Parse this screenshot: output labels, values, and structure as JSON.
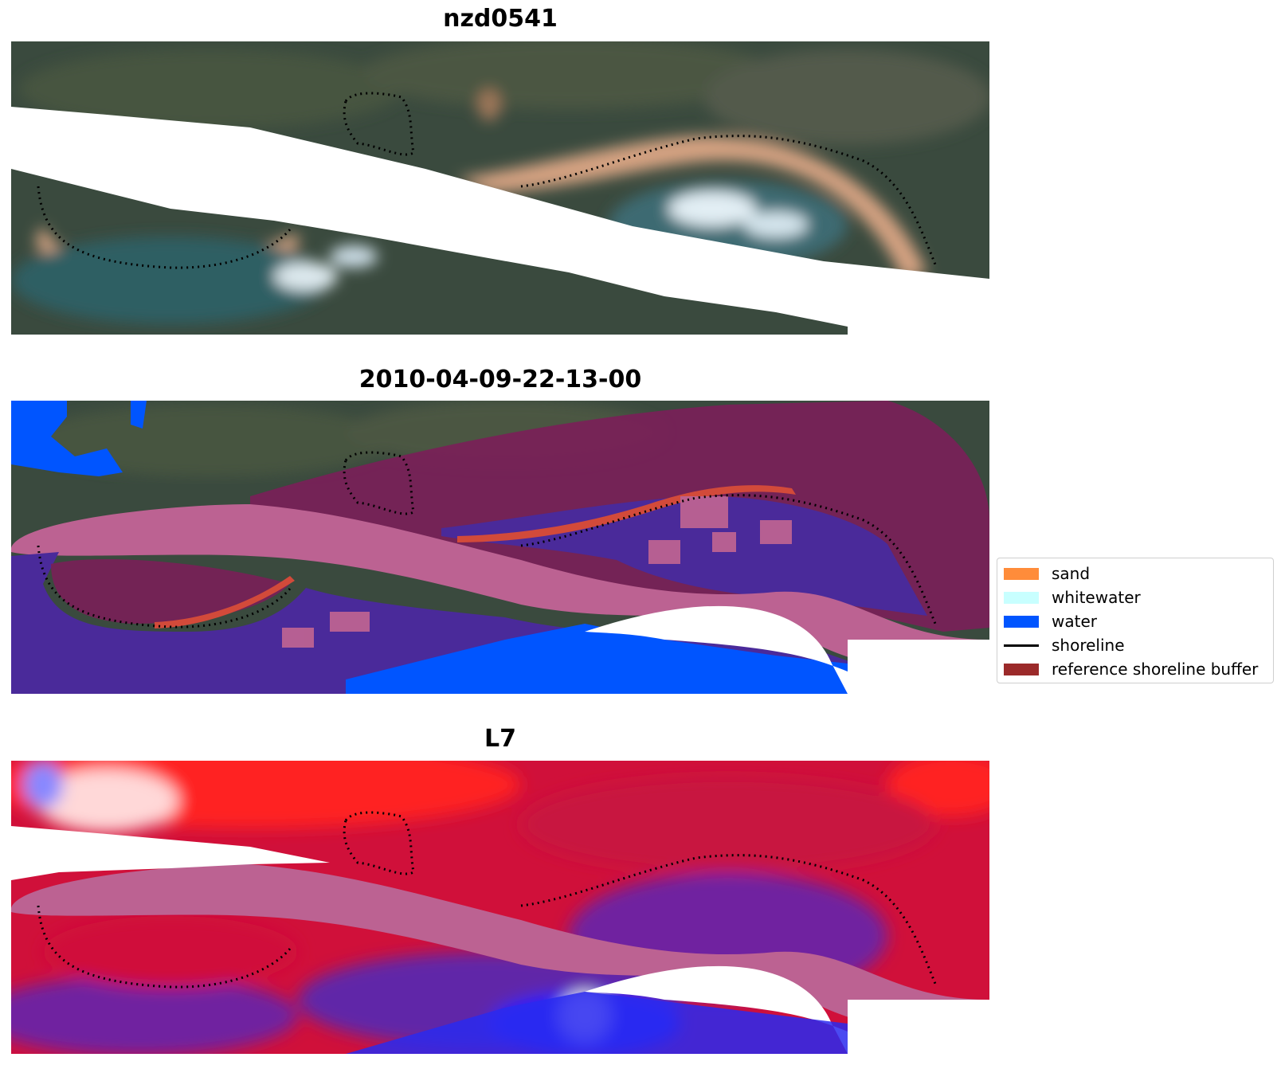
{
  "panels": [
    {
      "title": "nzd0541",
      "kind": "rgb"
    },
    {
      "title": "2010-04-09-22-13-00",
      "kind": "classified"
    },
    {
      "title": "L7",
      "kind": "index"
    }
  ],
  "legend": {
    "items": [
      {
        "label": "sand",
        "color": "#ff8c3a",
        "type": "patch"
      },
      {
        "label": "whitewater",
        "color": "#c8ffff",
        "type": "patch"
      },
      {
        "label": "water",
        "color": "#0055ff",
        "type": "patch"
      },
      {
        "label": "shoreline",
        "color": "#000000",
        "type": "line"
      },
      {
        "label": "reference shoreline buffer",
        "color": "#9b2a2a",
        "type": "patch"
      }
    ]
  },
  "colors": {
    "land": "#3e4a3c",
    "sand": "#d9a684",
    "water_rgb": "#2e5a5e",
    "whitewater_rgb": "#dce8ee",
    "buffer_overlay": "#7a1f58",
    "class_water": "#4a2a9a",
    "class_water_open": "#0055ff",
    "class_sand": "#d24a3a",
    "nodata_pink": "#bc6292",
    "index_red": "#d0103a",
    "index_bright_red": "#ff2020",
    "index_purple": "#7020a0",
    "index_blue": "#2222ff"
  }
}
